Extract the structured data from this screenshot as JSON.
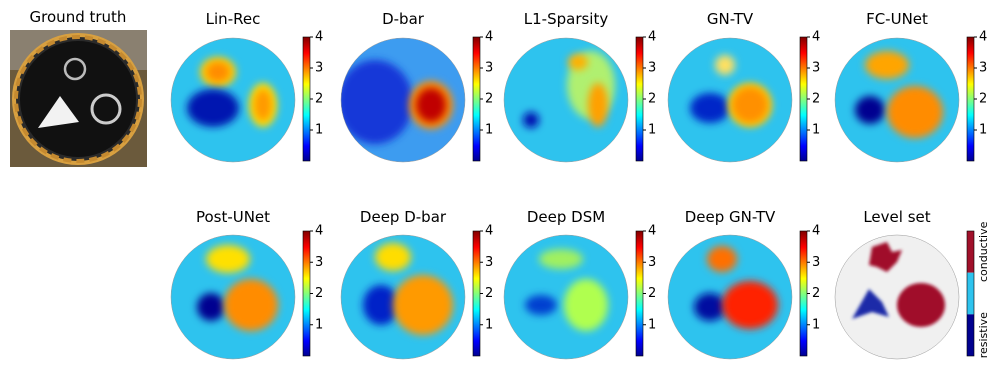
{
  "ground_truth": {
    "title": "Ground truth"
  },
  "panels": [
    {
      "title": "Lin-Rec"
    },
    {
      "title": "D-bar"
    },
    {
      "title": "L1-Sparsity"
    },
    {
      "title": "GN-TV"
    },
    {
      "title": "FC-UNet"
    },
    {
      "title": "Post-UNet"
    },
    {
      "title": "Deep D-bar"
    },
    {
      "title": "Deep DSM"
    },
    {
      "title": "Deep GN-TV"
    },
    {
      "title": "Level set"
    }
  ],
  "colorbar": {
    "range": [
      0,
      4
    ],
    "ticks": [
      1,
      2,
      3,
      4
    ]
  },
  "level_set_colorbar": {
    "labels": [
      "conductive",
      "resistive"
    ]
  }
}
